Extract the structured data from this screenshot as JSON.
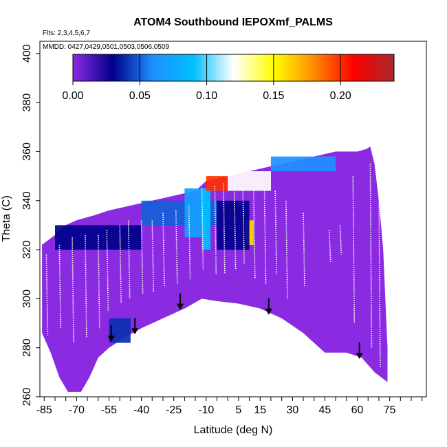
{
  "chart_data": {
    "type": "heatmap",
    "title": "ATOM4 Southbound IEPOXmf_PALMS",
    "annotations": {
      "flights": "Flts: 2,3,4,5,6,7",
      "dates": "MMDD: 0427,0429,0501,0503,0506,0509"
    },
    "xlabel": "Latitude (deg N)",
    "ylabel": "Theta (C)",
    "xlim": [
      -87,
      92
    ],
    "ylim": [
      260,
      405
    ],
    "x_ticks": [
      -85,
      -70,
      -55,
      -40,
      -25,
      -10,
      5,
      15,
      30,
      45,
      60,
      75
    ],
    "x_minor_step": 5,
    "y_ticks": [
      260,
      280,
      300,
      320,
      340,
      360,
      380,
      400
    ],
    "colorbar": {
      "range": [
        0,
        0.24
      ],
      "ticks": [
        0.0,
        0.05,
        0.1,
        0.15,
        0.2
      ],
      "tick_labels": [
        "0.00",
        "0.05",
        "0.10",
        "0.15",
        "0.20"
      ],
      "colors": [
        "#8a2be2",
        "#00008b",
        "#1e90ff",
        "#00bfff",
        "#ffffff",
        "#ffff00",
        "#ff8c00",
        "#ff0000",
        "#a52a2a"
      ]
    },
    "background_level": 0.0,
    "field_outline_top": [
      [
        -86,
        322
      ],
      [
        -80,
        326
      ],
      [
        -75,
        330
      ],
      [
        -70,
        332
      ],
      [
        -62,
        334
      ],
      [
        -55,
        336
      ],
      [
        -45,
        338
      ],
      [
        -35,
        340
      ],
      [
        -25,
        342
      ],
      [
        -15,
        344
      ],
      [
        -10,
        348
      ],
      [
        0,
        350
      ],
      [
        10,
        352
      ],
      [
        20,
        354
      ],
      [
        30,
        356
      ],
      [
        40,
        358
      ],
      [
        50,
        360
      ],
      [
        60,
        360
      ],
      [
        64,
        361
      ],
      [
        66,
        362
      ],
      [
        68,
        355
      ],
      [
        70,
        340
      ],
      [
        72,
        320
      ],
      [
        73,
        300
      ],
      [
        74,
        280
      ],
      [
        74,
        270
      ]
    ],
    "field_outline_bottom": [
      [
        -86,
        286
      ],
      [
        -82,
        278
      ],
      [
        -78,
        268
      ],
      [
        -74,
        262
      ],
      [
        -68,
        262
      ],
      [
        -64,
        268
      ],
      [
        -60,
        276
      ],
      [
        -55,
        280
      ],
      [
        -48,
        284
      ],
      [
        -40,
        288
      ],
      [
        -30,
        292
      ],
      [
        -20,
        296
      ],
      [
        -12,
        300
      ],
      [
        -5,
        299
      ],
      [
        5,
        298
      ],
      [
        15,
        296
      ],
      [
        25,
        292
      ],
      [
        35,
        286
      ],
      [
        45,
        278
      ],
      [
        55,
        278
      ],
      [
        62,
        276
      ],
      [
        68,
        270
      ],
      [
        74,
        266
      ]
    ],
    "high_value_regions": [
      {
        "lat": [
          -55,
          -45
        ],
        "theta": [
          282,
          292
        ],
        "value": 0.04
      },
      {
        "lat": [
          -80,
          -40
        ],
        "theta": [
          320,
          330
        ],
        "value": 0.03
      },
      {
        "lat": [
          -40,
          -5
        ],
        "theta": [
          330,
          340
        ],
        "value": 0.05
      },
      {
        "lat": [
          -20,
          -10
        ],
        "theta": [
          325,
          345
        ],
        "value": 0.07
      },
      {
        "lat": [
          -12,
          -8
        ],
        "theta": [
          320,
          345
        ],
        "value": 0.09
      },
      {
        "lat": [
          -10,
          0
        ],
        "theta": [
          344,
          350
        ],
        "value": 0.2
      },
      {
        "lat": [
          0,
          20
        ],
        "theta": [
          344,
          352
        ],
        "value": 0.12
      },
      {
        "lat": [
          20,
          50
        ],
        "theta": [
          352,
          358
        ],
        "value": 0.06
      },
      {
        "lat": [
          8,
          12
        ],
        "theta": [
          322,
          332
        ],
        "value": 0.16
      },
      {
        "lat": [
          -5,
          10
        ],
        "theta": [
          320,
          340
        ],
        "value": 0.03
      }
    ],
    "arrow_markers": [
      {
        "lat": -54,
        "theta": 283
      },
      {
        "lat": -43,
        "theta": 286
      },
      {
        "lat": -22,
        "theta": 296
      },
      {
        "lat": 19,
        "theta": 294
      },
      {
        "lat": 61,
        "theta": 276
      }
    ],
    "flight_track_samples": [
      {
        "lat": -84,
        "theta": [
          285,
          318
        ]
      },
      {
        "lat": -78,
        "theta": [
          288,
          322
        ]
      },
      {
        "lat": -72,
        "theta": [
          282,
          325
        ]
      },
      {
        "lat": -66,
        "theta": [
          284,
          326
        ]
      },
      {
        "lat": -60,
        "theta": [
          288,
          326
        ]
      },
      {
        "lat": -56,
        "theta": [
          295,
          328
        ]
      },
      {
        "lat": -50,
        "theta": [
          298,
          330
        ]
      },
      {
        "lat": -46,
        "theta": [
          300,
          332
        ]
      },
      {
        "lat": -40,
        "theta": [
          302,
          332
        ]
      },
      {
        "lat": -35,
        "theta": [
          303,
          332
        ]
      },
      {
        "lat": -30,
        "theta": [
          305,
          335
        ]
      },
      {
        "lat": -24,
        "theta": [
          306,
          336
        ]
      },
      {
        "lat": -18,
        "theta": [
          308,
          338
        ]
      },
      {
        "lat": -12,
        "theta": [
          312,
          345
        ]
      },
      {
        "lat": -6,
        "theta": [
          310,
          346
        ]
      },
      {
        "lat": -2,
        "theta": [
          310,
          347
        ]
      },
      {
        "lat": 3,
        "theta": [
          312,
          347
        ]
      },
      {
        "lat": 7,
        "theta": [
          314,
          345
        ]
      },
      {
        "lat": 12,
        "theta": [
          308,
          345
        ]
      },
      {
        "lat": 17,
        "theta": [
          306,
          345
        ]
      },
      {
        "lat": 22,
        "theta": [
          310,
          344
        ]
      },
      {
        "lat": 27,
        "theta": [
          300,
          340
        ]
      },
      {
        "lat": 35,
        "theta": [
          305,
          335
        ]
      },
      {
        "lat": 47,
        "theta": [
          315,
          328
        ]
      },
      {
        "lat": 52,
        "theta": [
          318,
          330
        ]
      },
      {
        "lat": 58,
        "theta": [
          290,
          350
        ]
      },
      {
        "lat": 66,
        "theta": [
          280,
          355
        ]
      },
      {
        "lat": 70,
        "theta": [
          272,
          350
        ]
      }
    ]
  }
}
